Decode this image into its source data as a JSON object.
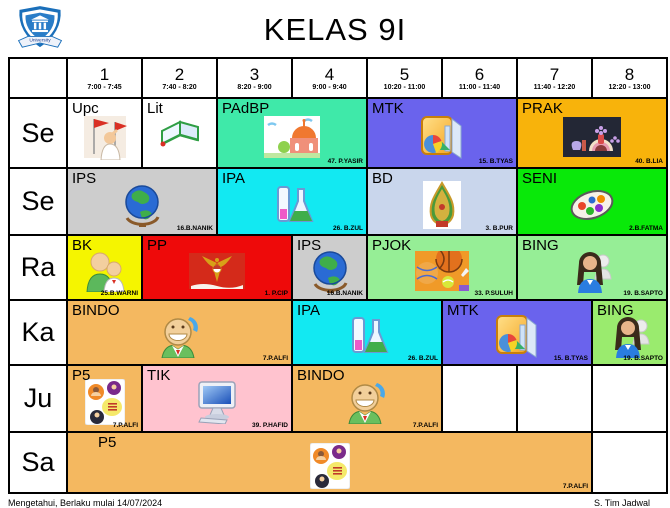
{
  "title": "KELAS 9I",
  "logo": {
    "banner": "University"
  },
  "periods": [
    {
      "num": "1",
      "time": "7:00 - 7:45"
    },
    {
      "num": "2",
      "time": "7:40 - 8:20"
    },
    {
      "num": "3",
      "time": "8:20 - 9:00"
    },
    {
      "num": "4",
      "time": "9:00 - 9:40"
    },
    {
      "num": "5",
      "time": "10:20 - 11:00"
    },
    {
      "num": "6",
      "time": "11:00 - 11:40"
    },
    {
      "num": "7",
      "time": "11:40 - 12:20"
    },
    {
      "num": "8",
      "time": "12:20 - 13:00"
    }
  ],
  "rows": [
    {
      "day": "Se",
      "cells": [
        {
          "subject": "Upc",
          "teacher": "",
          "span": 1,
          "bg": "#ffffff",
          "icon": "flag-ceremony"
        },
        {
          "subject": "Lit",
          "teacher": "",
          "span": 1,
          "bg": "#ffffff",
          "icon": "open-book"
        },
        {
          "subject": "PAdBP",
          "teacher": "47. P.YASIR",
          "span": 2,
          "bg": "#3fe9a9",
          "icon": "mosque"
        },
        {
          "subject": "MTK",
          "teacher": "15. B.TYAS",
          "span": 2,
          "bg": "#6a63ed",
          "icon": "math-chart"
        },
        {
          "subject": "PRAK",
          "teacher": "40. B.LIA",
          "span": 2,
          "bg": "#f8b30b",
          "icon": "craft-photo"
        }
      ]
    },
    {
      "day": "Se",
      "cells": [
        {
          "subject": "IPS",
          "teacher": "16.B.NANIK",
          "span": 2,
          "bg": "#cdcdcd",
          "icon": "globe"
        },
        {
          "subject": "IPA",
          "teacher": "26. B.ZUL",
          "span": 2,
          "bg": "#12e9f2",
          "icon": "science-flasks"
        },
        {
          "subject": "BD",
          "teacher": "3. B.PUR",
          "span": 2,
          "bg": "#c9d6ec",
          "icon": "wayang"
        },
        {
          "subject": "SENI",
          "teacher": "2.B.FATMA",
          "span": 2,
          "bg": "#09e909",
          "icon": "palette"
        }
      ]
    },
    {
      "day": "Ra",
      "cells": [
        {
          "subject": "BK",
          "teacher": "25.B.WARNI",
          "span": 1,
          "bg": "#f5f500",
          "icon": "counseling"
        },
        {
          "subject": "PP",
          "teacher": "1. P.CIP",
          "span": 2,
          "bg": "#ee0a0a",
          "icon": "garuda-flag"
        },
        {
          "subject": "IPS",
          "teacher": "16.B.NANIK",
          "span": 1,
          "bg": "#cdcdcd",
          "icon": "globe"
        },
        {
          "subject": "PJOK",
          "teacher": "33. P.SULUH",
          "span": 2,
          "bg": "#96ee96",
          "icon": "sports-balls"
        },
        {
          "subject": "BING",
          "teacher": "19. B.SAPTO",
          "span": 2,
          "bg": "#96ee96",
          "icon": "english-speaker"
        }
      ]
    },
    {
      "day": "Ka",
      "cells": [
        {
          "subject": "BINDO",
          "teacher": "7.P.ALFI",
          "span": 3,
          "bg": "#f4b860",
          "icon": "speaking-person"
        },
        {
          "subject": "IPA",
          "teacher": "26. B.ZUL",
          "span": 2,
          "bg": "#12e9f2",
          "icon": "science-flasks"
        },
        {
          "subject": "MTK",
          "teacher": "15. B.TYAS",
          "span": 2,
          "bg": "#6a63ed",
          "icon": "math-chart"
        },
        {
          "subject": "BING",
          "teacher": "19. B.SAPTO",
          "span": 1,
          "bg": "#9aeb6e",
          "icon": "english-speaker"
        }
      ]
    },
    {
      "day": "Ju",
      "cells": [
        {
          "subject": "P5",
          "teacher": "7.P.ALFI",
          "span": 1,
          "bg": "#f4b860",
          "icon": "p5-logo"
        },
        {
          "subject": "TIK",
          "teacher": "39. P.HAFID",
          "span": 2,
          "bg": "#ffc3cf",
          "icon": "computer"
        },
        {
          "subject": "BINDO",
          "teacher": "7.P.ALFI",
          "span": 2,
          "bg": "#f4b860",
          "icon": "speaking-person"
        },
        {
          "subject": "",
          "teacher": "",
          "span": 1,
          "bg": "#ffffff",
          "icon": ""
        },
        {
          "subject": "",
          "teacher": "",
          "span": 1,
          "bg": "#ffffff",
          "icon": ""
        },
        {
          "subject": "",
          "teacher": "",
          "span": 1,
          "bg": "#ffffff",
          "icon": ""
        }
      ]
    },
    {
      "day": "Sa",
      "cells": [
        {
          "subject": "P5",
          "teacher": "7.P.ALFI",
          "span": 7,
          "bg": "#f4b860",
          "icon": "p5-logo"
        },
        {
          "subject": "",
          "teacher": "",
          "span": 1,
          "bg": "#ffffff",
          "icon": ""
        }
      ]
    }
  ],
  "footer": {
    "left": "Mengetahui, Berlaku mulai 14/07/2024",
    "right": "S. Tim Jadwal"
  }
}
